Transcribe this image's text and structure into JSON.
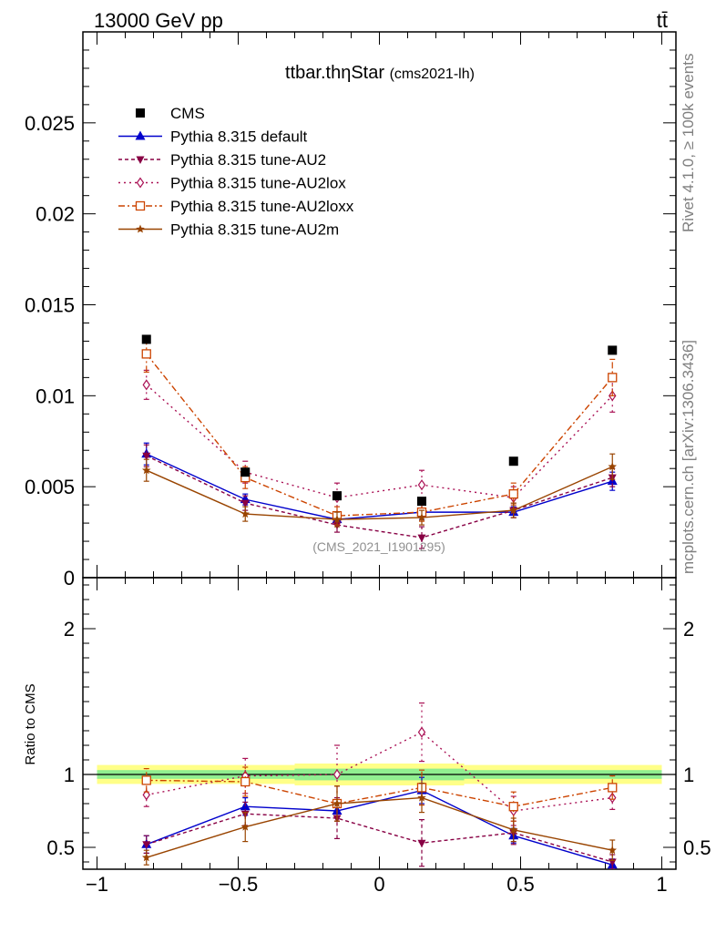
{
  "header": {
    "left": "13000 GeV pp",
    "right": "tt̄"
  },
  "side_labels": {
    "rivet": "Rivet 4.1.0, ≥ 100k events",
    "mcplots": "mcplots.cern.ch [arXiv:1306.3436]"
  },
  "chart_data": {
    "type": "line",
    "title": "ttbar.thηStar",
    "title_tag": "(cms2021-lh)",
    "watermark": "(CMS_2021_I1901295)",
    "xlabel": "",
    "ylabel_main": "",
    "ylabel_ratio": "Ratio to CMS",
    "xlim": [
      -1.05,
      1.05
    ],
    "ylim_main": [
      0,
      0.03
    ],
    "ylim_ratio": [
      0.35,
      2.35
    ],
    "x_ticks": [
      -1,
      -0.5,
      0,
      0.5,
      1
    ],
    "x_tick_labels": [
      "−1",
      "−0.5",
      "0",
      "0.5",
      "1"
    ],
    "y_ticks_main": [
      0,
      0.005,
      0.01,
      0.015,
      0.02,
      0.025
    ],
    "y_tick_labels_main": [
      "0",
      "0.005",
      "0.01",
      "0.015",
      "0.02",
      "0.025"
    ],
    "y_ticks_ratio": [
      0.5,
      1,
      2
    ],
    "y_tick_labels_ratio": [
      "0.5",
      "1",
      "2"
    ],
    "bin_edges": [
      -1,
      -0.65,
      -0.3,
      0,
      0.3,
      0.65,
      1
    ],
    "x": [
      -0.825,
      -0.475,
      -0.15,
      0.15,
      0.475,
      0.825
    ],
    "data": {
      "name": "CMS",
      "color": "#000000",
      "values": [
        0.0131,
        0.0058,
        0.0045,
        0.0042,
        0.0064,
        0.0125
      ],
      "band_outer": [
        0.065,
        0.065,
        0.075,
        0.075,
        0.065,
        0.065
      ],
      "band_inner": [
        0.03,
        0.03,
        0.04,
        0.04,
        0.03,
        0.03
      ]
    },
    "series": [
      {
        "name": "Pythia 8.315 default",
        "color": "#0000cc",
        "dash": "",
        "marker": "triangle-up",
        "values": [
          0.0068,
          0.0043,
          0.0032,
          0.0036,
          0.0036,
          0.0053
        ],
        "errors": [
          0.0006,
          0.0003,
          0.0003,
          0.0004,
          0.0003,
          0.0005
        ],
        "ratio": [
          0.52,
          0.78,
          0.75,
          0.89,
          0.58,
          0.38
        ],
        "ratio_err": [
          0.06,
          0.06,
          0.07,
          0.09,
          0.05,
          0.04
        ]
      },
      {
        "name": "Pythia 8.315 tune-AU2",
        "color": "#880044",
        "dash": "4,3",
        "marker": "triangle-down",
        "values": [
          0.0067,
          0.0041,
          0.0029,
          0.0022,
          0.0037,
          0.0055
        ],
        "errors": [
          0.0006,
          0.0004,
          0.0004,
          0.0006,
          0.0004,
          0.0005
        ],
        "ratio": [
          0.52,
          0.73,
          0.7,
          0.53,
          0.6,
          0.4
        ],
        "ratio_err": [
          0.06,
          0.08,
          0.14,
          0.16,
          0.08,
          0.05
        ]
      },
      {
        "name": "Pythia 8.315 tune-AU2lox",
        "color": "#aa1155",
        "dash": "2,4",
        "marker": "diamond-open",
        "values": [
          0.0106,
          0.0058,
          0.0044,
          0.0051,
          0.0044,
          0.01
        ],
        "errors": [
          0.0008,
          0.0006,
          0.0008,
          0.0008,
          0.0006,
          0.0009
        ],
        "ratio": [
          0.86,
          0.99,
          1.0,
          1.29,
          0.75,
          0.84
        ],
        "ratio_err": [
          0.08,
          0.12,
          0.2,
          0.2,
          0.1,
          0.08
        ]
      },
      {
        "name": "Pythia 8.315 tune-AU2loxx",
        "color": "#cc4400",
        "dash": "7,3,2,3",
        "marker": "square-open",
        "values": [
          0.0123,
          0.0055,
          0.0034,
          0.0036,
          0.0046,
          0.011
        ],
        "errors": [
          0.001,
          0.0006,
          0.0005,
          0.0005,
          0.0006,
          0.001
        ],
        "ratio": [
          0.96,
          0.95,
          0.8,
          0.91,
          0.78,
          0.91
        ],
        "ratio_err": [
          0.08,
          0.1,
          0.12,
          0.12,
          0.1,
          0.08
        ]
      },
      {
        "name": "Pythia 8.315 tune-AU2m",
        "color": "#994400",
        "dash": "",
        "marker": "star",
        "values": [
          0.0059,
          0.0035,
          0.0032,
          0.0033,
          0.0037,
          0.0061
        ],
        "errors": [
          0.0006,
          0.0004,
          0.0004,
          0.0004,
          0.0004,
          0.0007
        ],
        "ratio": [
          0.43,
          0.64,
          0.8,
          0.84,
          0.62,
          0.48
        ],
        "ratio_err": [
          0.05,
          0.1,
          0.12,
          0.1,
          0.08,
          0.07
        ]
      }
    ]
  }
}
